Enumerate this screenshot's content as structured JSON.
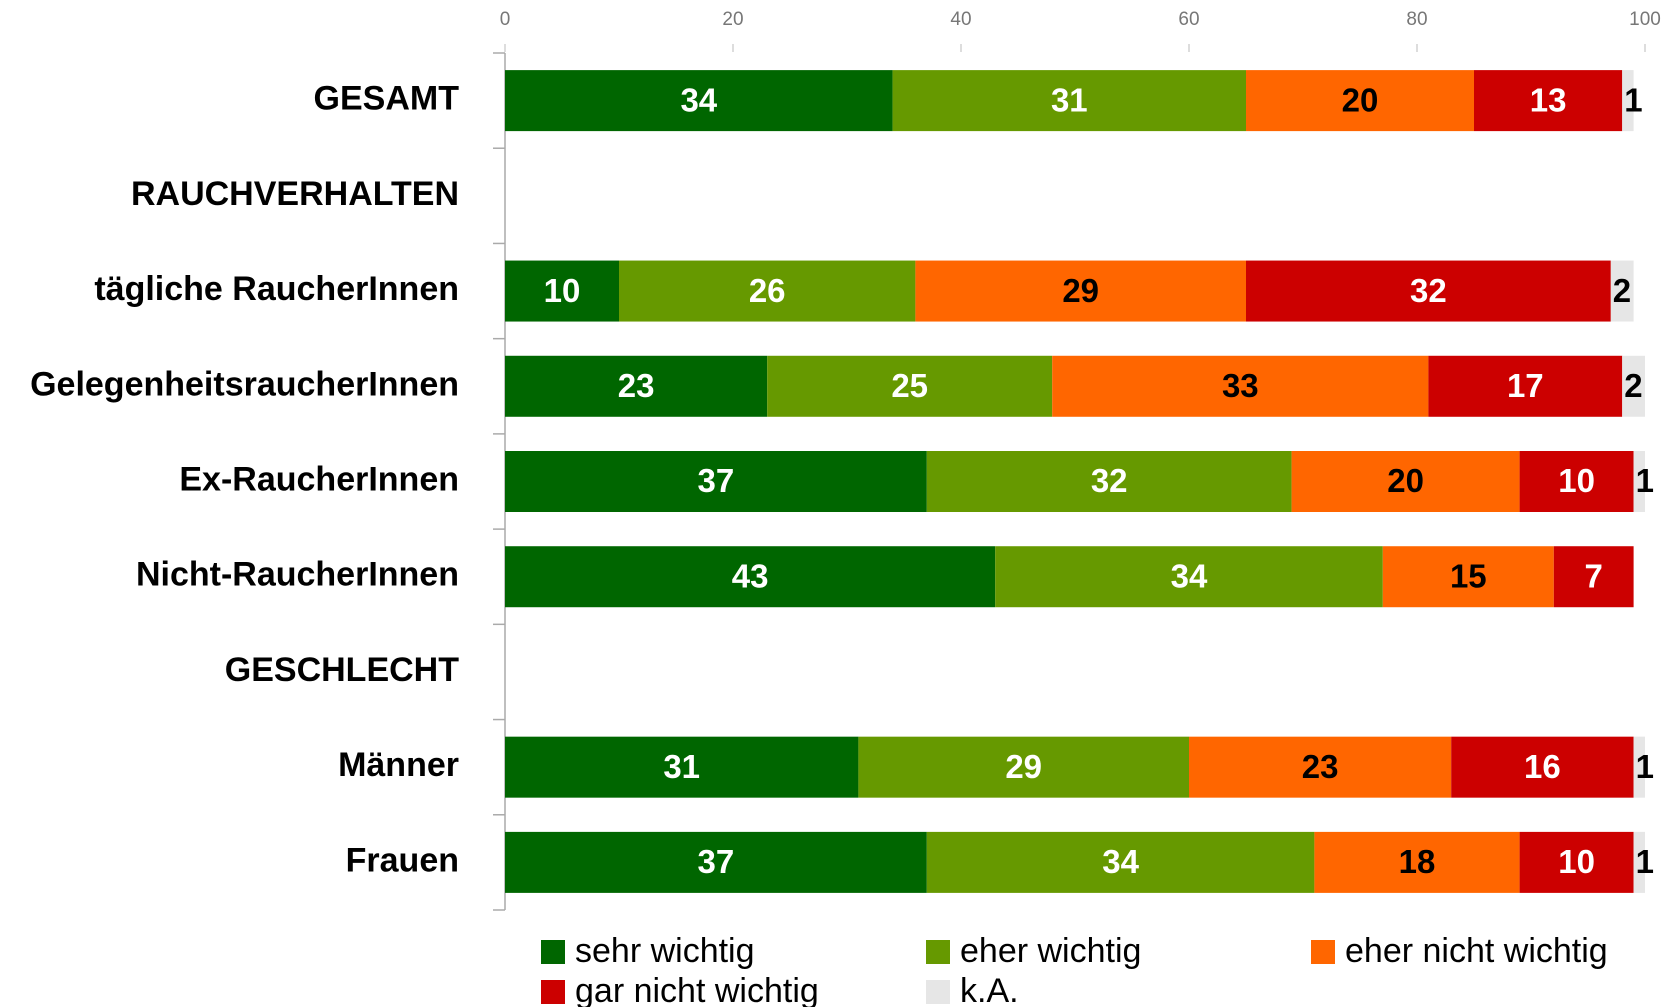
{
  "chart_data": {
    "type": "stacked_barh",
    "categories": [
      "GESAMT",
      "RAUCHVERHALTEN",
      "tägliche RaucherInnen",
      "GelegenheitsraucherInnen",
      "Ex-RaucherInnen",
      "Nicht-RaucherInnen",
      "GESCHLECHT",
      "Männer",
      "Frauen"
    ],
    "series": [
      {
        "name": "sehr wichtig",
        "color": "#006600",
        "label_color": "#ffffff",
        "values": [
          34,
          null,
          10,
          23,
          37,
          43,
          null,
          31,
          37
        ]
      },
      {
        "name": "eher wichtig",
        "color": "#669900",
        "label_color": "#ffffff",
        "values": [
          31,
          null,
          26,
          25,
          32,
          34,
          null,
          29,
          34
        ]
      },
      {
        "name": "eher nicht wichtig",
        "color": "#ff6600",
        "label_color": "#000000",
        "values": [
          20,
          null,
          29,
          33,
          20,
          15,
          null,
          23,
          18
        ]
      },
      {
        "name": "gar nicht wichtig",
        "color": "#cc0000",
        "label_color": "#ffffff",
        "values": [
          13,
          null,
          32,
          17,
          10,
          7,
          null,
          16,
          10
        ]
      },
      {
        "name": "k.A.",
        "color": "#e6e6e6",
        "label_color": "#000000",
        "values": [
          1,
          null,
          2,
          2,
          1,
          null,
          null,
          1,
          1
        ]
      }
    ],
    "xlim": [
      0,
      100
    ],
    "xticks": [
      0,
      20,
      40,
      60,
      80,
      100
    ],
    "grid": false,
    "legend": "bottom"
  }
}
